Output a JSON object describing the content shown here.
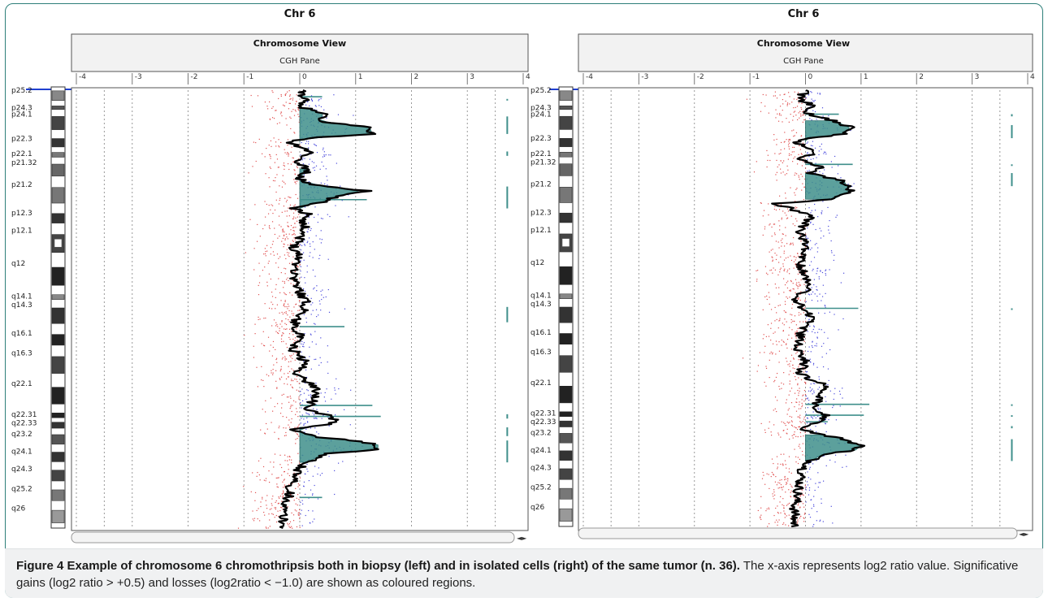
{
  "chart_data": [
    {
      "type": "scatter",
      "title": "Chr 6",
      "subtitle": "Chromosome View",
      "pane_label": "CGH Pane",
      "x_ticks": [
        "-4",
        "-3",
        "-2",
        "-1",
        "0",
        "1",
        "2",
        "3",
        "4"
      ],
      "xlim": [
        -4,
        4
      ],
      "bands": [
        "p25.2",
        "p24.3",
        "p24.1",
        "p22.3",
        "p22.1",
        "p21.32",
        "p21.2",
        "p12.3",
        "p12.1",
        "q12",
        "q14.1",
        "q14.3",
        "q16.1",
        "q16.3",
        "q22.1",
        "q22.31",
        "q22.33",
        "q23.2",
        "q24.1",
        "q24.3",
        "q25.2",
        "q26"
      ],
      "profile": [
        [
          0.0,
          0.0
        ],
        [
          0.02,
          0.1
        ],
        [
          0.035,
          -0.05
        ],
        [
          0.055,
          0.45
        ],
        [
          0.07,
          0.3
        ],
        [
          0.085,
          1.25
        ],
        [
          0.1,
          1.3
        ],
        [
          0.11,
          0.1
        ],
        [
          0.12,
          -0.2
        ],
        [
          0.14,
          0.2
        ],
        [
          0.16,
          -0.1
        ],
        [
          0.175,
          0.1
        ],
        [
          0.185,
          0.15
        ],
        [
          0.2,
          -0.05
        ],
        [
          0.215,
          0.2
        ],
        [
          0.23,
          1.2
        ],
        [
          0.24,
          0.7
        ],
        [
          0.255,
          0.4
        ],
        [
          0.27,
          -0.1
        ],
        [
          0.285,
          0.2
        ],
        [
          0.3,
          0.05
        ],
        [
          0.32,
          0.1
        ],
        [
          0.34,
          0.0
        ],
        [
          0.36,
          -0.1
        ],
        [
          0.38,
          0.0
        ],
        [
          0.42,
          -0.1
        ],
        [
          0.45,
          -0.05
        ],
        [
          0.48,
          0.1
        ],
        [
          0.5,
          0.1
        ],
        [
          0.53,
          -0.1
        ],
        [
          0.56,
          0.0
        ],
        [
          0.59,
          -0.15
        ],
        [
          0.62,
          0.1
        ],
        [
          0.65,
          -0.05
        ],
        [
          0.68,
          0.3
        ],
        [
          0.7,
          0.3
        ],
        [
          0.73,
          0.1
        ],
        [
          0.745,
          0.6
        ],
        [
          0.76,
          0.6
        ],
        [
          0.775,
          -0.1
        ],
        [
          0.79,
          0.2
        ],
        [
          0.8,
          0.9
        ],
        [
          0.81,
          1.4
        ],
        [
          0.82,
          1.4
        ],
        [
          0.83,
          0.5
        ],
        [
          0.85,
          0.1
        ],
        [
          0.87,
          -0.05
        ],
        [
          0.9,
          -0.15
        ],
        [
          0.93,
          -0.2
        ],
        [
          0.96,
          -0.3
        ],
        [
          1.0,
          -0.3
        ]
      ],
      "gain_regions": [
        [
          0.04,
          0.12,
          0.5,
          1.2
        ],
        [
          0.18,
          0.27,
          0.5,
          1.1
        ],
        [
          0.77,
          0.85,
          0.5,
          1.3
        ]
      ],
      "gain_lines": [
        [
          0.015,
          0.4
        ],
        [
          0.54,
          0.8
        ],
        [
          0.72,
          1.3
        ],
        [
          0.745,
          1.45
        ],
        [
          0.93,
          0.4
        ],
        [
          0.25,
          1.2
        ]
      ],
      "aberration_marks": [
        [
          0.02,
          0.02
        ],
        [
          0.06,
          0.1
        ],
        [
          0.14,
          0.15
        ],
        [
          0.22,
          0.27
        ],
        [
          0.495,
          0.53
        ],
        [
          0.74,
          0.75
        ],
        [
          0.77,
          0.79
        ],
        [
          0.8,
          0.85
        ]
      ]
    },
    {
      "type": "scatter",
      "title": "Chr 6",
      "subtitle": "Chromosome View",
      "pane_label": "CGH Pane",
      "x_ticks": [
        "-4",
        "-3",
        "-2",
        "-1",
        "0",
        "1",
        "2",
        "3",
        "4"
      ],
      "xlim": [
        -4,
        4
      ],
      "bands": [
        "p25.2",
        "p24.3",
        "p24.1",
        "p22.3",
        "p22.1",
        "p21.32",
        "p21.2",
        "p12.3",
        "p12.1",
        "q12",
        "q14.1",
        "q14.3",
        "q16.1",
        "q16.3",
        "q22.1",
        "q22.31",
        "q22.33",
        "q23.2",
        "q24.1",
        "q24.3",
        "q25.2",
        "q26"
      ],
      "profile": [
        [
          0.0,
          0.0
        ],
        [
          0.02,
          -0.1
        ],
        [
          0.035,
          0.1
        ],
        [
          0.05,
          -0.05
        ],
        [
          0.07,
          0.5
        ],
        [
          0.085,
          0.8
        ],
        [
          0.1,
          0.7
        ],
        [
          0.11,
          0.1
        ],
        [
          0.12,
          -0.2
        ],
        [
          0.14,
          0.2
        ],
        [
          0.16,
          -0.1
        ],
        [
          0.175,
          0.3
        ],
        [
          0.19,
          0.1
        ],
        [
          0.21,
          0.7
        ],
        [
          0.23,
          0.8
        ],
        [
          0.25,
          0.5
        ],
        [
          0.26,
          -0.6
        ],
        [
          0.27,
          -0.3
        ],
        [
          0.29,
          0.1
        ],
        [
          0.3,
          0.0
        ],
        [
          0.33,
          -0.1
        ],
        [
          0.36,
          0.0
        ],
        [
          0.39,
          -0.1
        ],
        [
          0.42,
          -0.05
        ],
        [
          0.45,
          0.1
        ],
        [
          0.48,
          -0.2
        ],
        [
          0.52,
          0.1
        ],
        [
          0.56,
          -0.1
        ],
        [
          0.59,
          -0.15
        ],
        [
          0.62,
          0.0
        ],
        [
          0.65,
          -0.1
        ],
        [
          0.68,
          0.4
        ],
        [
          0.7,
          0.3
        ],
        [
          0.73,
          0.1
        ],
        [
          0.745,
          0.35
        ],
        [
          0.76,
          0.3
        ],
        [
          0.775,
          -0.1
        ],
        [
          0.79,
          0.3
        ],
        [
          0.8,
          0.7
        ],
        [
          0.815,
          1.0
        ],
        [
          0.825,
          0.9
        ],
        [
          0.835,
          0.3
        ],
        [
          0.85,
          0.1
        ],
        [
          0.87,
          -0.05
        ],
        [
          0.9,
          -0.1
        ],
        [
          0.93,
          -0.15
        ],
        [
          0.96,
          -0.2
        ],
        [
          1.0,
          -0.2
        ]
      ],
      "gain_regions": [
        [
          0.07,
          0.12,
          0.5,
          0.8
        ],
        [
          0.19,
          0.25,
          0.5,
          0.8
        ],
        [
          0.79,
          0.85,
          0.5,
          1.0
        ]
      ],
      "gain_lines": [
        [
          0.055,
          0.6
        ],
        [
          0.17,
          0.85
        ],
        [
          0.5,
          0.95
        ],
        [
          0.72,
          1.15
        ],
        [
          0.745,
          1.05
        ],
        [
          0.76,
          0.4
        ]
      ],
      "aberration_marks": [
        [
          0.055,
          0.06
        ],
        [
          0.08,
          0.11
        ],
        [
          0.17,
          0.17
        ],
        [
          0.19,
          0.22
        ],
        [
          0.5,
          0.5
        ],
        [
          0.72,
          0.72
        ],
        [
          0.745,
          0.745
        ],
        [
          0.77,
          0.775
        ],
        [
          0.8,
          0.85
        ]
      ]
    }
  ],
  "caption": {
    "bold": "Figure 4 Example of chromosome 6 chromothripsis both in biopsy (left) and in isolated cells (right) of the same tumor (n. 36).",
    "text": " The x-axis represents log2 ratio value. Significative gains (log2 ratio > +0.5) and losses (log2ratio < −1.0) are shown as coloured regions."
  },
  "colors": {
    "gain_fill": "#3f8f8b",
    "gain_stroke": "#2c6f6b",
    "probe_gain": "#4a4adc",
    "probe_loss": "#e05050",
    "profile": "#000000",
    "frame": "#2e7f7a"
  }
}
